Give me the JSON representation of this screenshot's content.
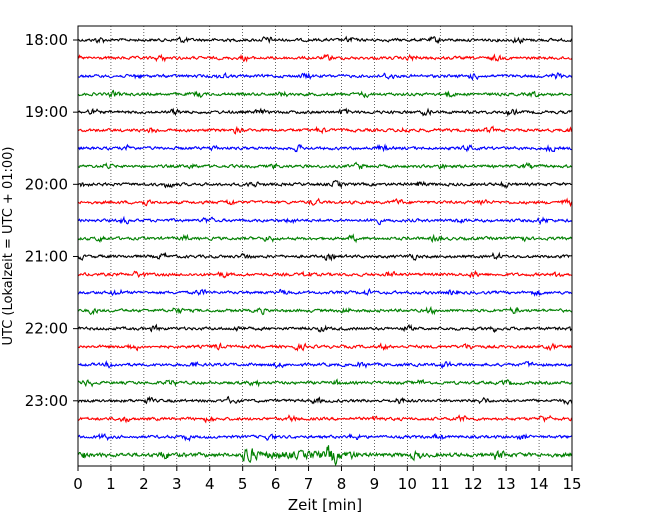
{
  "chart_data": {
    "type": "line",
    "title": "",
    "xlabel": "Zeit  [min]",
    "ylabel": "UTC (Lokalzeit = UTC + 01:00)",
    "xlim": [
      0,
      15
    ],
    "x_ticks": [
      "0",
      "1",
      "2",
      "3",
      "4",
      "5",
      "6",
      "7",
      "8",
      "9",
      "10",
      "11",
      "12",
      "13",
      "14",
      "15"
    ],
    "y_ticks": [
      "18:00",
      "19:00",
      "20:00",
      "21:00",
      "22:00",
      "23:00"
    ],
    "trace_interval_min": 15,
    "trace_count": 24,
    "trace_colors": [
      "#000000",
      "#ff0000",
      "#0000ff",
      "#008000"
    ],
    "grid": "vertical dotted",
    "legend": "none"
  }
}
